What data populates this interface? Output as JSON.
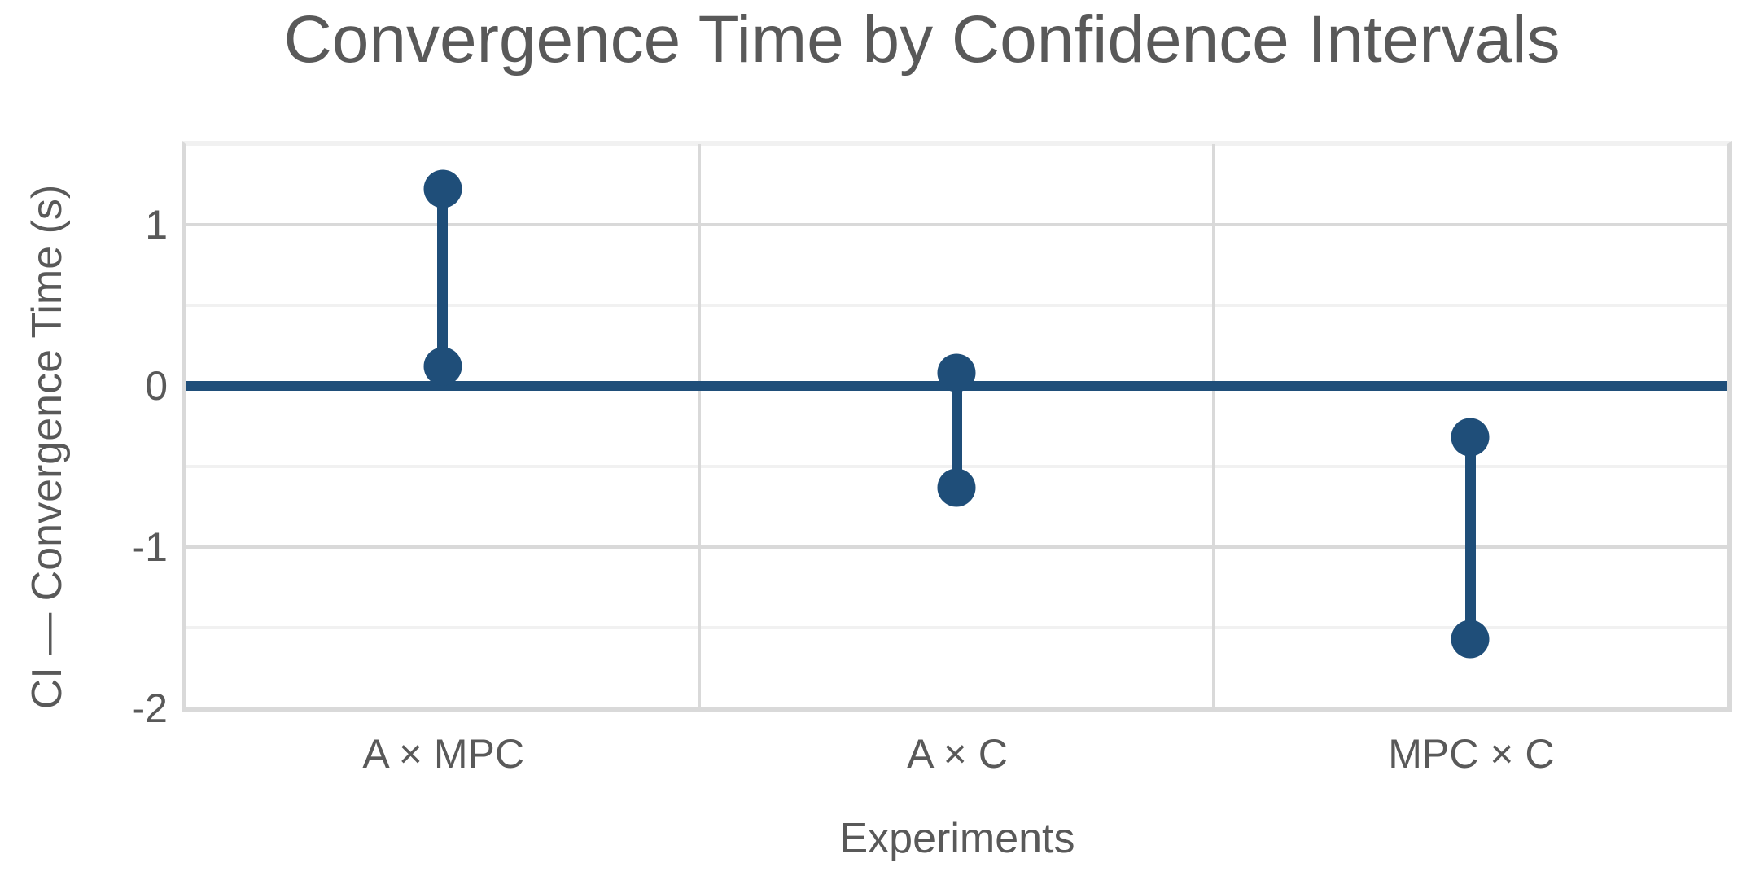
{
  "chart_data": {
    "type": "interval",
    "title": "Convergence Time by Confidence Intervals",
    "xlabel": "Experiments",
    "ylabel": "CI — Convergence Time (s)",
    "categories": [
      "A × MPC",
      "A × C",
      "MPC × C"
    ],
    "series": [
      {
        "name": "A × MPC",
        "low": 0.12,
        "high": 1.22
      },
      {
        "name": "A × C",
        "low": -0.63,
        "high": 0.08
      },
      {
        "name": "MPC × C",
        "low": -1.57,
        "high": -0.32
      }
    ],
    "ylim": [
      -2,
      1.5
    ],
    "yticks": [
      {
        "value": 1,
        "label": "1"
      },
      {
        "value": 0,
        "label": "0"
      },
      {
        "value": -1,
        "label": "-1"
      },
      {
        "value": -2,
        "label": "-2"
      }
    ],
    "ygrid_major": [
      1,
      0,
      -1,
      -2
    ],
    "ygrid_minor": [
      1.5,
      0.5,
      -0.5,
      -1.5
    ],
    "zero_line_y": 0,
    "grid": true,
    "legend_position": "none",
    "colors": {
      "accent": "#1F4E79",
      "grid_major": "#D9D9D9",
      "grid_minor": "#F1F1F1",
      "text": "#595959",
      "background": "#FFFFFF"
    }
  }
}
